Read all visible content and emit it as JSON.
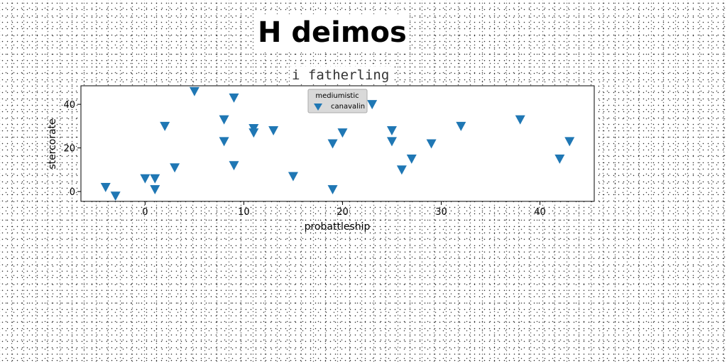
{
  "title": "H deimos",
  "subtitle": "i fatherling",
  "chart_data": {
    "type": "scatter",
    "xlabel": "probattleship",
    "ylabel": "stercorate",
    "xlim": [
      -6.5,
      45.5
    ],
    "ylim": [
      -4.5,
      48.5
    ],
    "xticks": [
      0,
      10,
      20,
      30,
      40
    ],
    "yticks": [
      0,
      20,
      40
    ],
    "ytick_labels": [
      "0",
      "20",
      "40"
    ],
    "legend": {
      "title": "mediumistic",
      "placement": "top-center"
    },
    "series": [
      {
        "name": "canavalin",
        "marker": "triangle-down",
        "color": "#1f77b4",
        "x": [
          -4,
          -3,
          0,
          1,
          1,
          2,
          3,
          5,
          8,
          8,
          9,
          9,
          11,
          11,
          13,
          15,
          19,
          19,
          20,
          23,
          25,
          25,
          26,
          27,
          29,
          32,
          38,
          42,
          43
        ],
        "y": [
          2,
          -2,
          6,
          6,
          1,
          30,
          11,
          46,
          33,
          23,
          12,
          43,
          29,
          27,
          28,
          7,
          1,
          22,
          27,
          40,
          28,
          23,
          10,
          15,
          22,
          30,
          33,
          15,
          23
        ]
      }
    ]
  }
}
